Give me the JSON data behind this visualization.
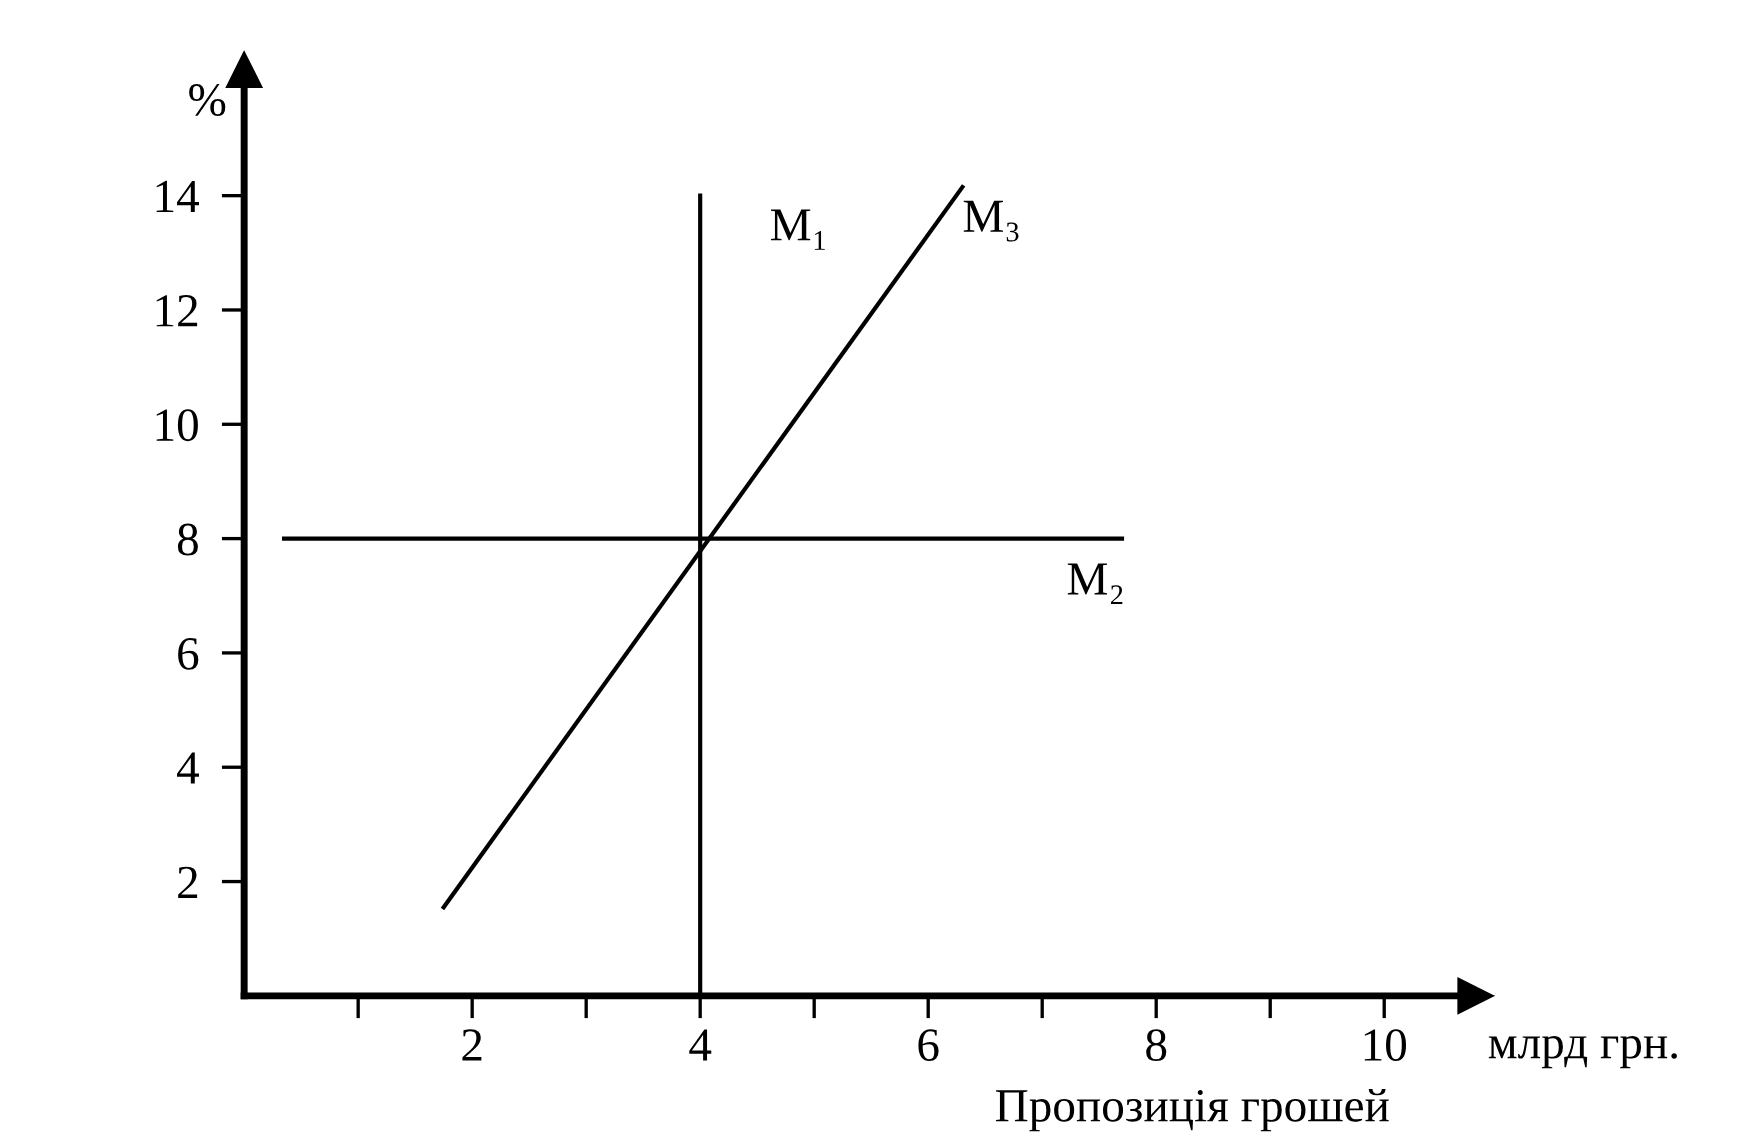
{
  "chart_data": {
    "type": "line",
    "xlabel": "Пропозиція грошей",
    "ylabel": "%",
    "annotations": [
      "млрд грн."
    ],
    "series": [
      {
        "name": "M₁",
        "color": "#000000",
        "x": [
          4,
          4
        ],
        "values": [
          0,
          14
        ]
      },
      {
        "name": "M₂",
        "color": "#000000",
        "x": [
          0.35,
          7.7
        ],
        "values": [
          8,
          8
        ]
      },
      {
        "name": "M₃",
        "color": "#000000",
        "x": [
          1.75,
          6.3
        ],
        "values": [
          1.55,
          14.15
        ]
      }
    ],
    "xlim": [
      0,
      10.8
    ],
    "ylim": [
      0,
      16.2
    ],
    "xticks": [
      {
        "value": 1,
        "label": null
      },
      2,
      {
        "value": 3,
        "label": null
      },
      4,
      {
        "value": 5,
        "label": null
      },
      6,
      {
        "value": 7,
        "label": null
      },
      8,
      {
        "value": 9,
        "label": null
      },
      10
    ],
    "yticks": [
      2,
      4,
      6,
      8,
      10,
      12,
      14
    ],
    "grid": false,
    "legend": false,
    "marker": "none",
    "line_style": "solid"
  }
}
